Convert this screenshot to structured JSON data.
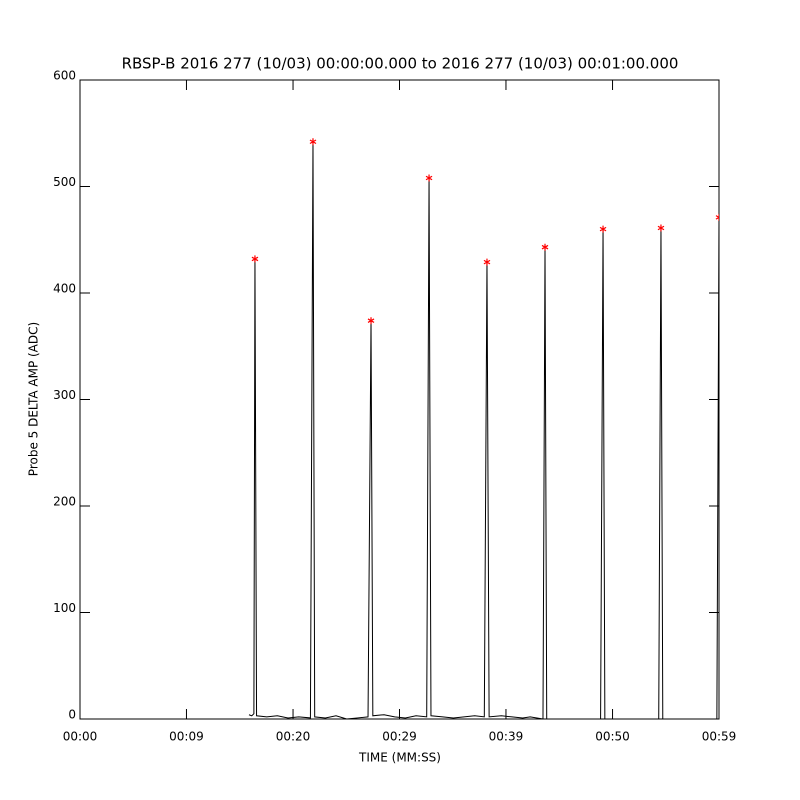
{
  "chart_data": {
    "type": "line",
    "title": "RBSP-B 2016 277 (10/03) 00:00:00.000 to 2016 277 (10/03) 00:01:00.000",
    "x_label": "TIME (MM:SS)",
    "y_label": "Probe 5 DELTA AMP (ADC)",
    "xlim": [
      0,
      59.9
    ],
    "ylim": [
      0,
      600
    ],
    "xticks": [
      {
        "value": 0,
        "label": "00:00"
      },
      {
        "value": 9.98,
        "label": "00:09"
      },
      {
        "value": 19.97,
        "label": "00:20"
      },
      {
        "value": 29.95,
        "label": "00:29"
      },
      {
        "value": 39.93,
        "label": "00:39"
      },
      {
        "value": 49.92,
        "label": "00:50"
      },
      {
        "value": 59.9,
        "label": "00:59"
      }
    ],
    "yticks": [
      0,
      100,
      200,
      300,
      400,
      500,
      600
    ],
    "series": [
      {
        "color": "#000000",
        "marker": "none",
        "x": [
          15.84,
          16.1,
          16.3,
          16.4,
          16.55,
          17.5,
          18.5,
          19.5,
          20.5,
          21.6,
          21.84,
          22.0,
          23.0,
          24.0,
          25.0,
          26.0,
          27.0,
          27.28,
          27.45,
          28.5,
          29.5,
          30.5,
          31.5,
          32.5,
          32.72,
          32.9,
          34.0,
          35.0,
          36.0,
          37.0,
          37.9,
          38.15,
          38.35,
          39.5,
          40.5,
          41.5,
          42.2,
          43.4,
          43.59,
          43.75,
          45.0,
          48.8,
          49.03,
          49.2,
          52.0,
          54.25,
          54.46,
          54.63,
          57.0,
          59.7,
          59.9
        ],
        "values": [
          4,
          3,
          5,
          432,
          3,
          2,
          3,
          1,
          2,
          1,
          542,
          2,
          1,
          3,
          0,
          1,
          2,
          374,
          3,
          4,
          2,
          1,
          3,
          2,
          508,
          3,
          2,
          1,
          2,
          3,
          2,
          429,
          2,
          3,
          2,
          1,
          2,
          0,
          443,
          0,
          0,
          0,
          460,
          0,
          0,
          0,
          461,
          0,
          0,
          0,
          471
        ]
      },
      {
        "color": "#ff0000",
        "marker": "star",
        "x": [
          16.4,
          21.84,
          27.28,
          32.72,
          38.15,
          43.59,
          49.03,
          54.46,
          59.9
        ],
        "values": [
          432,
          542,
          374,
          508,
          429,
          443,
          460,
          461,
          471
        ]
      }
    ]
  }
}
